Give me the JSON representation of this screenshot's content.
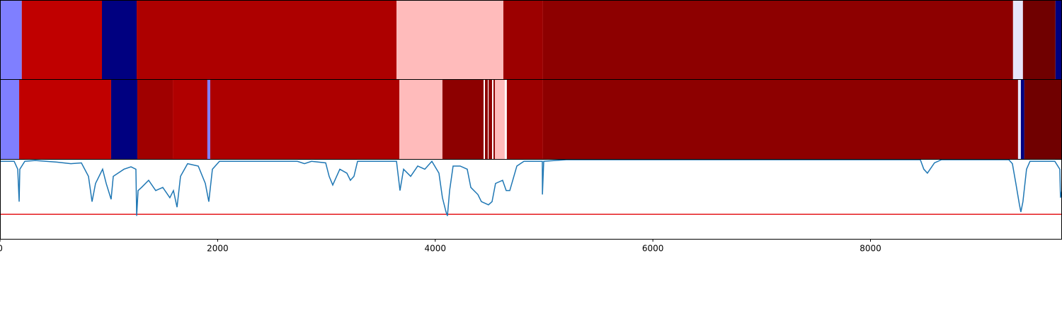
{
  "chart_data": [
    {
      "type": "segment_bar",
      "xlim": [
        0,
        9760
      ],
      "segments": [
        {
          "start": 0,
          "end": 200,
          "color": "#7f7fff"
        },
        {
          "start": 200,
          "end": 937,
          "color": "#c00000"
        },
        {
          "start": 937,
          "end": 1256,
          "color": "#000080"
        },
        {
          "start": 1256,
          "end": 3644,
          "color": "#ad0000"
        },
        {
          "start": 3644,
          "end": 4626,
          "color": "#ffbbbb"
        },
        {
          "start": 4626,
          "end": 4990,
          "color": "#9c0000"
        },
        {
          "start": 4990,
          "end": 9310,
          "color": "#8d0000"
        },
        {
          "start": 9310,
          "end": 9401,
          "color": "#e6e6fa"
        },
        {
          "start": 9401,
          "end": 9700,
          "color": "#700000"
        },
        {
          "start": 9700,
          "end": 9760,
          "color": "#000080"
        }
      ]
    },
    {
      "type": "segment_bar",
      "xlim": [
        0,
        9760
      ],
      "segments": [
        {
          "start": 0,
          "end": 176,
          "color": "#7f7fff"
        },
        {
          "start": 176,
          "end": 1021,
          "color": "#c00000"
        },
        {
          "start": 1021,
          "end": 1262,
          "color": "#000080"
        },
        {
          "start": 1262,
          "end": 1588,
          "color": "#a00000"
        },
        {
          "start": 1588,
          "end": 1906,
          "color": "#b00000"
        },
        {
          "start": 1906,
          "end": 1932,
          "color": "#7f7fff"
        },
        {
          "start": 1932,
          "end": 3670,
          "color": "#ad0000"
        },
        {
          "start": 3670,
          "end": 4066,
          "color": "#ffbbbb"
        },
        {
          "start": 4066,
          "end": 4444,
          "color": "#8d0000"
        },
        {
          "start": 4444,
          "end": 4457,
          "color": "#ffffff"
        },
        {
          "start": 4457,
          "end": 4483,
          "color": "#8d0000"
        },
        {
          "start": 4483,
          "end": 4490,
          "color": "#ffffff"
        },
        {
          "start": 4490,
          "end": 4522,
          "color": "#8d0000"
        },
        {
          "start": 4522,
          "end": 4535,
          "color": "#ffffff"
        },
        {
          "start": 4535,
          "end": 4548,
          "color": "#8d0000"
        },
        {
          "start": 4548,
          "end": 4639,
          "color": "#ffbbbb"
        },
        {
          "start": 4639,
          "end": 4658,
          "color": "#ffffff"
        },
        {
          "start": 4658,
          "end": 4990,
          "color": "#9c0000"
        },
        {
          "start": 4990,
          "end": 9356,
          "color": "#8d0000"
        },
        {
          "start": 9356,
          "end": 9382,
          "color": "#e6e6fa"
        },
        {
          "start": 9382,
          "end": 9414,
          "color": "#000080"
        },
        {
          "start": 9414,
          "end": 9760,
          "color": "#700000"
        }
      ]
    },
    {
      "type": "line",
      "xlim": [
        0,
        9760
      ],
      "ylim": [
        0,
        1
      ],
      "xticks": [
        0,
        2000,
        4000,
        6000,
        8000
      ],
      "threshold": 0.31,
      "threshold_color": "#e41a1c",
      "color": "#1f77b4",
      "x": [
        0,
        130,
        163,
        176,
        182,
        228,
        325,
        520,
        651,
        748,
        813,
        846,
        878,
        943,
        976,
        1021,
        1041,
        1139,
        1204,
        1249,
        1256,
        1269,
        1301,
        1366,
        1431,
        1496,
        1561,
        1594,
        1627,
        1659,
        1724,
        1822,
        1887,
        1919,
        1952,
        2017,
        2277,
        2733,
        2798,
        2863,
        2993,
        3025,
        3058,
        3123,
        3188,
        3220,
        3253,
        3286,
        3644,
        3676,
        3709,
        3774,
        3839,
        3904,
        3969,
        4034,
        4066,
        4099,
        4112,
        4132,
        4164,
        4229,
        4294,
        4327,
        4392,
        4424,
        4489,
        4522,
        4554,
        4619,
        4652,
        4685,
        4750,
        4815,
        4984,
        4985,
        4997,
        5205,
        8458,
        8490,
        8523,
        8588,
        8653,
        9271,
        9304,
        9336,
        9369,
        9382,
        9401,
        9434,
        9466,
        9694,
        9740,
        9746,
        9759
      ],
      "values": [
        0.98,
        0.98,
        0.88,
        0.47,
        0.88,
        0.98,
        0.99,
        0.97,
        0.95,
        0.96,
        0.79,
        0.47,
        0.7,
        0.88,
        0.7,
        0.5,
        0.79,
        0.88,
        0.91,
        0.88,
        0.29,
        0.61,
        0.65,
        0.74,
        0.61,
        0.65,
        0.52,
        0.61,
        0.4,
        0.79,
        0.95,
        0.92,
        0.7,
        0.47,
        0.88,
        0.98,
        0.98,
        0.98,
        0.95,
        0.98,
        0.96,
        0.79,
        0.68,
        0.88,
        0.83,
        0.74,
        0.79,
        0.98,
        0.98,
        0.61,
        0.88,
        0.79,
        0.92,
        0.88,
        0.98,
        0.83,
        0.52,
        0.34,
        0.29,
        0.61,
        0.92,
        0.92,
        0.88,
        0.65,
        0.56,
        0.47,
        0.43,
        0.47,
        0.7,
        0.74,
        0.61,
        0.61,
        0.92,
        0.98,
        0.98,
        0.56,
        0.98,
        1,
        1,
        0.88,
        0.83,
        0.96,
        1,
        1,
        0.95,
        0.7,
        0.43,
        0.34,
        0.47,
        0.88,
        0.98,
        0.98,
        0.88,
        0.52,
        0.61
      ]
    }
  ]
}
